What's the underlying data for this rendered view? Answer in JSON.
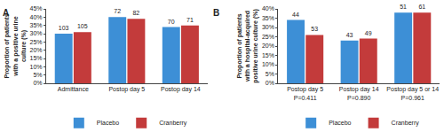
{
  "chart_data": [
    {
      "type": "bar",
      "panel": "A",
      "y_label": "Proportion of patients with a positive urine culture (%)",
      "categories": [
        "Admittance",
        "Postop day 5",
        "Postop day 14"
      ],
      "series": [
        {
          "name": "Placebo",
          "color": "#3d8fd6",
          "values": [
            30,
            40,
            34
          ],
          "counts": [
            103,
            72,
            70
          ]
        },
        {
          "name": "Cranberry",
          "color": "#c33b3b",
          "values": [
            31,
            39,
            35
          ],
          "counts": [
            105,
            82,
            71
          ]
        }
      ],
      "ylim": [
        0,
        45
      ],
      "yticks": [
        {
          "value": 0,
          "label": "0%"
        },
        {
          "value": 5,
          "label": "5%"
        },
        {
          "value": 10,
          "label": "10%"
        },
        {
          "value": 15,
          "label": "15%"
        },
        {
          "value": 20,
          "label": "20%"
        },
        {
          "value": 25,
          "label": "25%"
        },
        {
          "value": 30,
          "label": "30%"
        },
        {
          "value": 35,
          "label": "35%"
        },
        {
          "value": 40,
          "label": "40%"
        },
        {
          "value": 45,
          "label": "45%"
        }
      ],
      "grid": false,
      "legend": "bottom"
    },
    {
      "type": "bar",
      "panel": "B",
      "y_label": "Proportion of patients with a hospital-acquired positive urine culture (%)",
      "categories": [
        "Postop day 5",
        "Postop day 14",
        "Postop day 5 or 14"
      ],
      "category_notes": [
        "P=0.411",
        "P=0.890",
        "P=0.961"
      ],
      "series": [
        {
          "name": "Placebo",
          "color": "#3d8fd6",
          "values": [
            34,
            23,
            38
          ],
          "counts": [
            44,
            43,
            51
          ]
        },
        {
          "name": "Cranberry",
          "color": "#c33b3b",
          "values": [
            26,
            24,
            38
          ],
          "counts": [
            53,
            49,
            61
          ]
        }
      ],
      "ylim": [
        0,
        40
      ],
      "yticks": [
        {
          "value": 0,
          "label": "0%"
        },
        {
          "value": 5,
          "label": "5%"
        },
        {
          "value": 10,
          "label": "10%"
        },
        {
          "value": 15,
          "label": "15%"
        },
        {
          "value": 20,
          "label": "20%"
        },
        {
          "value": 25,
          "label": "25%"
        },
        {
          "value": 30,
          "label": "30%"
        },
        {
          "value": 35,
          "label": "35%"
        },
        {
          "value": 40,
          "label": "40%"
        }
      ],
      "grid": false,
      "legend": "bottom"
    }
  ]
}
